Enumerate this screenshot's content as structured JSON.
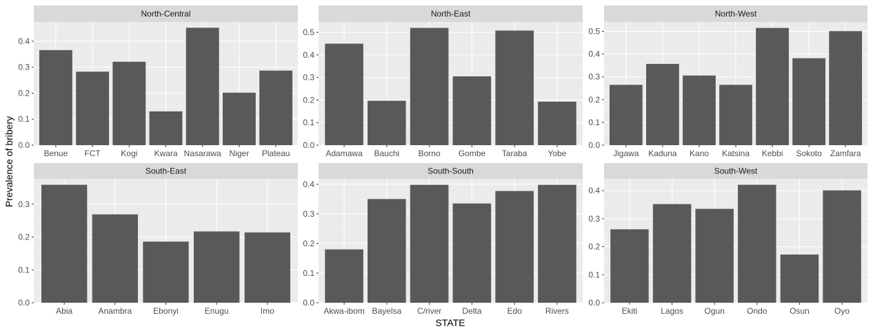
{
  "chart_data": {
    "type": "bar",
    "xlabel": "STATE",
    "ylabel": "Prevalence of bribery",
    "colors": {
      "bar": "#595959",
      "panel": "#ebebeb",
      "strip": "#d9d9d9",
      "gridMajor": "#ffffff",
      "gridMinor": "#f4f4f4",
      "tick": "#333333"
    },
    "panels": [
      {
        "title": "North-Central",
        "categories": [
          "Benue",
          "FCT",
          "Kogi",
          "Kwara",
          "Nasarawa",
          "Niger",
          "Plateau"
        ],
        "values": [
          0.366,
          0.283,
          0.321,
          0.13,
          0.452,
          0.202,
          0.287
        ],
        "ylim": [
          0,
          0.474
        ],
        "yticks": [
          0.0,
          0.1,
          0.2,
          0.3,
          0.4
        ]
      },
      {
        "title": "North-East",
        "categories": [
          "Adamawa",
          "Bauchi",
          "Borno",
          "Gombe",
          "Taraba",
          "Yobe"
        ],
        "values": [
          0.45,
          0.197,
          0.52,
          0.305,
          0.508,
          0.193
        ],
        "ylim": [
          0,
          0.546
        ],
        "yticks": [
          0.0,
          0.1,
          0.2,
          0.3,
          0.4,
          0.5
        ]
      },
      {
        "title": "North-West",
        "categories": [
          "Jigawa",
          "Kaduna",
          "Kano",
          "Katsina",
          "Kebbi",
          "Sokoto",
          "Zamfara"
        ],
        "values": [
          0.265,
          0.357,
          0.306,
          0.265,
          0.515,
          0.382,
          0.501
        ],
        "ylim": [
          0,
          0.541
        ],
        "yticks": [
          0.0,
          0.1,
          0.2,
          0.3,
          0.4,
          0.5
        ]
      },
      {
        "title": "South-East",
        "categories": [
          "Abia",
          "Anambra",
          "Ebonyi",
          "Enugu",
          "Imo"
        ],
        "values": [
          0.359,
          0.269,
          0.186,
          0.217,
          0.214
        ],
        "ylim": [
          0,
          0.377
        ],
        "yticks": [
          0.0,
          0.1,
          0.2,
          0.3
        ]
      },
      {
        "title": "South-South",
        "categories": [
          "Akwa-ibom",
          "Bayelsa",
          "C/river",
          "Delta",
          "Edo",
          "Rivers"
        ],
        "values": [
          0.18,
          0.35,
          0.398,
          0.335,
          0.377,
          0.398
        ],
        "ylim": [
          0,
          0.418
        ],
        "yticks": [
          0.0,
          0.1,
          0.2,
          0.3,
          0.4
        ]
      },
      {
        "title": "South-West",
        "categories": [
          "Ekiti",
          "Lagos",
          "Ogun",
          "Ondo",
          "Osun",
          "Oyo"
        ],
        "values": [
          0.262,
          0.352,
          0.335,
          0.421,
          0.172,
          0.401
        ],
        "ylim": [
          0,
          0.442
        ],
        "yticks": [
          0.0,
          0.1,
          0.2,
          0.3,
          0.4
        ]
      }
    ]
  }
}
